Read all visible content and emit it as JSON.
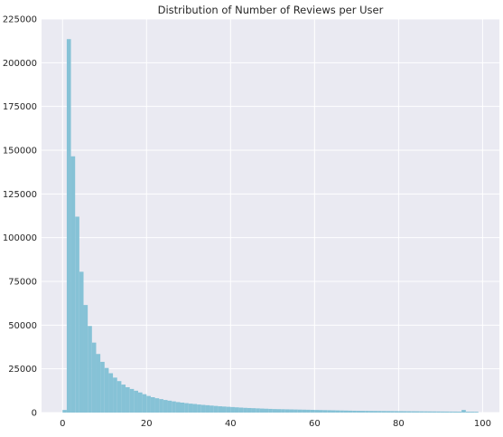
{
  "chart_data": {
    "type": "bar",
    "title": "Distribution of Number of Reviews per User",
    "xlabel": "",
    "ylabel": "",
    "bin_width": 1,
    "bin_starts": [
      0,
      1,
      2,
      3,
      4,
      5,
      6,
      7,
      8,
      9,
      10,
      11,
      12,
      13,
      14,
      15,
      16,
      17,
      18,
      19,
      20,
      21,
      22,
      23,
      24,
      25,
      26,
      27,
      28,
      29,
      30,
      31,
      32,
      33,
      34,
      35,
      36,
      37,
      38,
      39,
      40,
      41,
      42,
      43,
      44,
      45,
      46,
      47,
      48,
      49,
      50,
      51,
      52,
      53,
      54,
      55,
      56,
      57,
      58,
      59,
      60,
      61,
      62,
      63,
      64,
      65,
      66,
      67,
      68,
      69,
      70,
      71,
      72,
      73,
      74,
      75,
      76,
      77,
      78,
      79,
      80,
      81,
      82,
      83,
      84,
      85,
      86,
      87,
      88,
      89,
      90,
      91,
      92,
      93,
      94,
      95,
      96,
      97,
      98
    ],
    "values": [
      1500,
      213500,
      146500,
      112000,
      80500,
      61500,
      49500,
      40000,
      33500,
      29000,
      25500,
      22500,
      20000,
      18000,
      16000,
      14500,
      13500,
      12500,
      11500,
      10500,
      9500,
      8800,
      8200,
      7700,
      7200,
      6800,
      6400,
      6000,
      5700,
      5400,
      5100,
      4900,
      4600,
      4400,
      4200,
      4000,
      3800,
      3600,
      3450,
      3300,
      3150,
      3000,
      2850,
      2700,
      2600,
      2500,
      2400,
      2300,
      2200,
      2100,
      2000,
      1950,
      1900,
      1850,
      1800,
      1750,
      1700,
      1650,
      1600,
      1550,
      1500,
      1450,
      1400,
      1350,
      1300,
      1250,
      1200,
      1150,
      1100,
      1050,
      1000,
      980,
      960,
      940,
      920,
      900,
      880,
      860,
      840,
      820,
      800,
      780,
      760,
      740,
      720,
      700,
      680,
      660,
      640,
      620,
      600,
      580,
      560,
      540,
      520,
      1500,
      500,
      480,
      460
    ],
    "xticks": [
      0,
      20,
      40,
      60,
      80,
      100
    ],
    "xtick_labels": [
      "0",
      "20",
      "40",
      "60",
      "80",
      "100"
    ],
    "yticks": [
      0,
      25000,
      50000,
      75000,
      100000,
      125000,
      150000,
      175000,
      200000,
      225000
    ],
    "ytick_labels": [
      "0",
      "25000",
      "50000",
      "75000",
      "100000",
      "125000",
      "150000",
      "175000",
      "200000",
      "225000"
    ],
    "xlim": [
      -5,
      104
    ],
    "ylim": [
      0,
      225000
    ],
    "grid": true,
    "colors": {
      "bar": "#86c2d6",
      "plot_bg": "#eaeaf2",
      "grid": "#ffffff"
    }
  }
}
